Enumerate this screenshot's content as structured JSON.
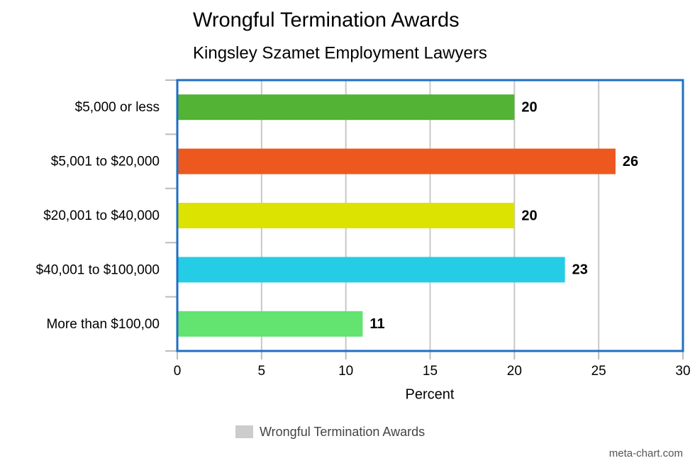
{
  "chart_data": {
    "type": "bar",
    "orientation": "horizontal",
    "title": "Wrongful Termination Awards",
    "subtitle": "Kingsley Szamet Employment Lawyers",
    "categories": [
      "$5,000 or less",
      "$5,001 to $20,000",
      "$20,001 to $40,000",
      "$40,001 to $100,000",
      "More than $100,00"
    ],
    "series": [
      {
        "name": "Wrongful Termination Awards",
        "color": "#cccccc",
        "values": [
          20,
          26,
          20,
          23,
          11
        ],
        "colors": [
          "#52b334",
          "#ed581f",
          "#dde300",
          "#25cce5",
          "#63e36f"
        ]
      }
    ],
    "xlim": [
      0,
      30
    ],
    "xticks": [
      0,
      5,
      10,
      15,
      20,
      25,
      30
    ],
    "xlabel": "Percent",
    "grid": true,
    "legend": "bottom",
    "watermark": "meta-chart.com"
  }
}
